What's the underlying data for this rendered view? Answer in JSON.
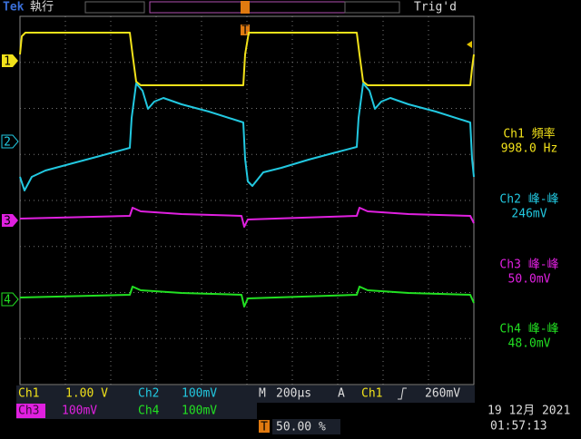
{
  "header": {
    "brand": "Tek",
    "mode": "執行",
    "trigger_state": "Trig'd",
    "trigger_marker": "T"
  },
  "channel_markers": [
    "1",
    "2",
    "3",
    "4"
  ],
  "measurements": [
    {
      "label": "Ch1 頻率",
      "value": "998.0 Hz"
    },
    {
      "label": "Ch2 峰-峰",
      "value": "246mV"
    },
    {
      "label": "Ch3 峰-峰",
      "value": "50.0mV"
    },
    {
      "label": "Ch4 峰-峰",
      "value": "48.0mV"
    }
  ],
  "status": {
    "ch1": {
      "name": "Ch1",
      "scale": "1.00 V"
    },
    "ch2": {
      "name": "Ch2",
      "scale": "100mV"
    },
    "ch3": {
      "name": "Ch3",
      "scale": "100mV"
    },
    "ch4": {
      "name": "Ch4",
      "scale": "100mV"
    },
    "timebase": {
      "label": "M",
      "value": "200µs"
    },
    "trigger": {
      "label": "A",
      "source": "Ch1",
      "level": "260mV"
    },
    "position": {
      "marker": "T",
      "value": "50.00 %"
    },
    "date": "19 12月 2021",
    "time": "01:57:13"
  }
}
